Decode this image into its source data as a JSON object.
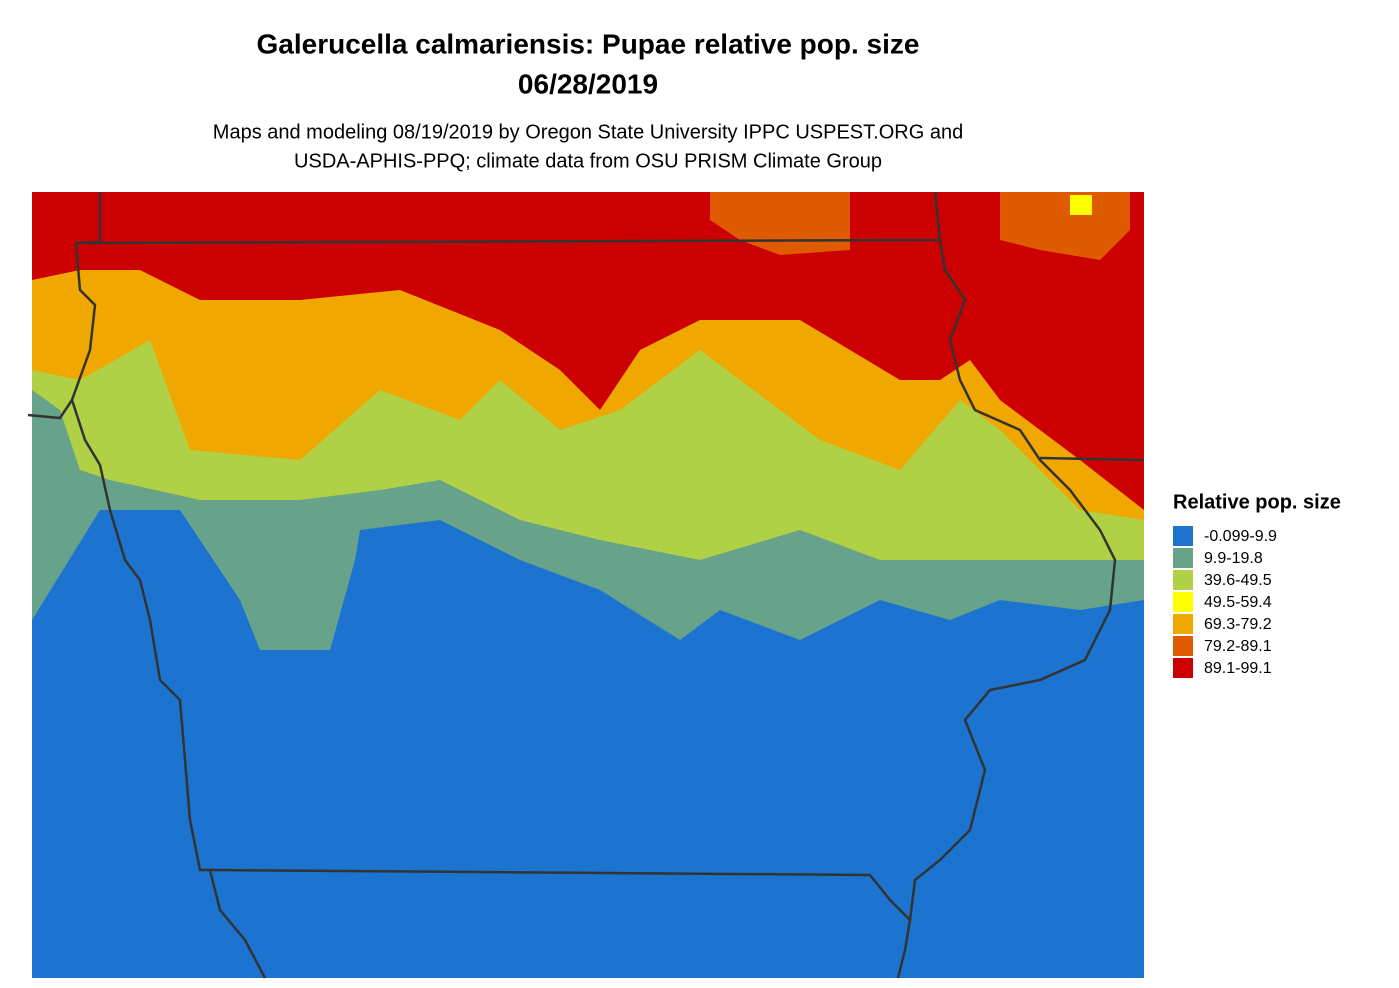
{
  "header": {
    "title": [
      "Galerucella calmariensis: Pupae relative pop. size",
      "06/28/2019"
    ],
    "subtitle": [
      "Maps and modeling 08/19/2019 by Oregon State University IPPC USPEST.ORG and",
      "USDA-APHIS-PPQ; climate data from OSU PRISM Climate Group"
    ]
  },
  "legend": {
    "title": "Relative pop. size",
    "items": [
      {
        "label": "-0.099-9.9",
        "color": "#1c74d0"
      },
      {
        "label": "9.9-19.8",
        "color": "#66a38a"
      },
      {
        "label": "39.6-49.5",
        "color": "#b0d045"
      },
      {
        "label": "49.5-59.4",
        "color": "#ffff00"
      },
      {
        "label": "69.3-79.2",
        "color": "#f0a800"
      },
      {
        "label": "79.2-89.1",
        "color": "#e05a00"
      },
      {
        "label": "89.1-99.1",
        "color": "#cc0000"
      }
    ]
  }
}
